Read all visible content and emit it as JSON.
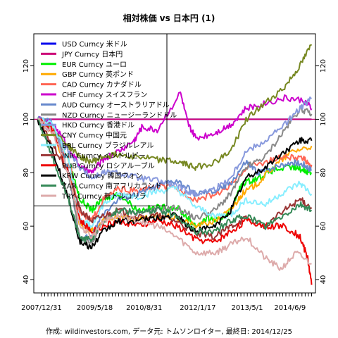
{
  "chart_data": {
    "type": "line",
    "title": "相対株価 vs 日本円 (1)",
    "footer": "作成: wildinvestors.com, データ元: トムソンロイター, 最終日: 2014/12/25",
    "xlabel": "",
    "ylabel": "",
    "x_tick_labels": [
      "2007/12/31",
      "2009/5/18",
      "2010/8/31",
      "2012/1/17",
      "2013/5/1",
      "2014/6/9"
    ],
    "x_tick_positions": [
      2008.0,
      2009.38,
      2010.66,
      2012.05,
      2013.33,
      2014.44
    ],
    "xlim": [
      2007.8,
      2015.1
    ],
    "ylim": [
      35,
      132
    ],
    "y_ticks": [
      40,
      60,
      80,
      100,
      120
    ],
    "reference_lines": [
      {
        "y": 100,
        "color": "#cc0077"
      }
    ],
    "legend_position": "top-left",
    "grid": false,
    "series": [
      {
        "name": "USD Curncy 米ドル",
        "color": "#0000ee",
        "points": [
          [
            2007.9,
            100
          ],
          [
            2015.0,
            100
          ]
        ]
      },
      {
        "name": "JPY Curncy 日本円",
        "color": "#cc0077",
        "points": [
          [
            2007.9,
            100
          ],
          [
            2015.0,
            100
          ]
        ]
      },
      {
        "name": "EUR Curncy ユーロ",
        "color": "#00ee00",
        "points": [
          [
            2007.9,
            100
          ],
          [
            2008.3,
            98
          ],
          [
            2008.7,
            85
          ],
          [
            2009.0,
            70
          ],
          [
            2009.3,
            66
          ],
          [
            2009.6,
            70
          ],
          [
            2010.0,
            72
          ],
          [
            2010.5,
            66
          ],
          [
            2011.0,
            67
          ],
          [
            2011.5,
            67
          ],
          [
            2011.8,
            63
          ],
          [
            2012.0,
            60
          ],
          [
            2012.3,
            63
          ],
          [
            2012.6,
            62
          ],
          [
            2012.9,
            66
          ],
          [
            2013.2,
            76
          ],
          [
            2013.6,
            78
          ],
          [
            2014.0,
            81
          ],
          [
            2014.5,
            82
          ],
          [
            2014.8,
            81
          ],
          [
            2015.0,
            80
          ]
        ]
      },
      {
        "name": "GBP Curncy 英ポンド",
        "color": "#ffaa00",
        "points": [
          [
            2007.9,
            100
          ],
          [
            2008.3,
            95
          ],
          [
            2008.7,
            80
          ],
          [
            2009.0,
            60
          ],
          [
            2009.3,
            58
          ],
          [
            2009.6,
            62
          ],
          [
            2010.0,
            64
          ],
          [
            2010.5,
            62
          ],
          [
            2011.0,
            64
          ],
          [
            2011.5,
            63
          ],
          [
            2012.0,
            60
          ],
          [
            2012.5,
            62
          ],
          [
            2012.9,
            66
          ],
          [
            2013.2,
            72
          ],
          [
            2013.6,
            76
          ],
          [
            2014.0,
            82
          ],
          [
            2014.5,
            88
          ],
          [
            2015.0,
            90
          ]
        ]
      },
      {
        "name": "CAD Curncy カナダドル",
        "color": "#ff6655",
        "points": [
          [
            2007.9,
            100
          ],
          [
            2008.3,
            96
          ],
          [
            2008.7,
            85
          ],
          [
            2009.0,
            65
          ],
          [
            2009.3,
            62
          ],
          [
            2009.6,
            70
          ],
          [
            2010.0,
            74
          ],
          [
            2010.5,
            73
          ],
          [
            2011.0,
            75
          ],
          [
            2011.5,
            74
          ],
          [
            2012.0,
            70
          ],
          [
            2012.5,
            72
          ],
          [
            2012.9,
            75
          ],
          [
            2013.3,
            82
          ],
          [
            2013.8,
            84
          ],
          [
            2014.3,
            86
          ],
          [
            2014.8,
            85
          ],
          [
            2015.0,
            83
          ]
        ]
      },
      {
        "name": "CHF Curncy スイスフラン",
        "color": "#cc00cc",
        "points": [
          [
            2007.9,
            100
          ],
          [
            2008.3,
            98
          ],
          [
            2008.7,
            90
          ],
          [
            2009.0,
            82
          ],
          [
            2009.3,
            80
          ],
          [
            2009.6,
            85
          ],
          [
            2010.0,
            88
          ],
          [
            2010.4,
            92
          ],
          [
            2010.6,
            97
          ],
          [
            2011.0,
            96
          ],
          [
            2011.6,
            110
          ],
          [
            2011.8,
            98
          ],
          [
            2012.0,
            93
          ],
          [
            2012.5,
            95
          ],
          [
            2012.9,
            98
          ],
          [
            2013.3,
            104
          ],
          [
            2013.8,
            106
          ],
          [
            2014.3,
            108
          ],
          [
            2014.8,
            107
          ],
          [
            2015.0,
            104
          ]
        ]
      },
      {
        "name": "AUD Curncy オーストラリアドル",
        "color": "#6688cc",
        "points": [
          [
            2007.9,
            100
          ],
          [
            2008.3,
            99
          ],
          [
            2008.7,
            80
          ],
          [
            2009.0,
            55
          ],
          [
            2009.3,
            56
          ],
          [
            2009.6,
            65
          ],
          [
            2010.0,
            70
          ],
          [
            2010.5,
            72
          ],
          [
            2011.0,
            75
          ],
          [
            2011.5,
            77
          ],
          [
            2012.0,
            72
          ],
          [
            2012.5,
            73
          ],
          [
            2012.9,
            76
          ],
          [
            2013.3,
            84
          ],
          [
            2013.6,
            80
          ],
          [
            2014.0,
            82
          ],
          [
            2014.5,
            84
          ],
          [
            2014.8,
            83
          ],
          [
            2015.0,
            81
          ]
        ]
      },
      {
        "name": "NZD Curncy ニュージーランドドル",
        "color": "#888888",
        "points": [
          [
            2007.9,
            100
          ],
          [
            2008.3,
            97
          ],
          [
            2008.7,
            80
          ],
          [
            2009.0,
            55
          ],
          [
            2009.3,
            54
          ],
          [
            2009.6,
            62
          ],
          [
            2010.0,
            66
          ],
          [
            2010.5,
            65
          ],
          [
            2011.0,
            66
          ],
          [
            2011.5,
            67
          ],
          [
            2012.0,
            63
          ],
          [
            2012.5,
            66
          ],
          [
            2012.9,
            72
          ],
          [
            2013.3,
            82
          ],
          [
            2013.8,
            86
          ],
          [
            2014.3,
            96
          ],
          [
            2014.7,
            104
          ],
          [
            2015.0,
            102
          ]
        ]
      },
      {
        "name": "HKD Curncy 香港ドル",
        "color": "#8899dd",
        "points": [
          [
            2007.9,
            100
          ],
          [
            2008.3,
            95
          ],
          [
            2008.7,
            88
          ],
          [
            2009.0,
            82
          ],
          [
            2009.3,
            78
          ],
          [
            2009.6,
            80
          ],
          [
            2010.0,
            80
          ],
          [
            2010.5,
            78
          ],
          [
            2011.0,
            77
          ],
          [
            2011.5,
            75
          ],
          [
            2011.8,
            73
          ],
          [
            2012.0,
            72
          ],
          [
            2012.5,
            74
          ],
          [
            2012.9,
            78
          ],
          [
            2013.3,
            88
          ],
          [
            2013.8,
            92
          ],
          [
            2014.3,
            98
          ],
          [
            2014.7,
            104
          ],
          [
            2015.0,
            108
          ]
        ]
      },
      {
        "name": "CNY Curncy 中国元",
        "color": "#778822",
        "points": [
          [
            2007.9,
            100
          ],
          [
            2008.3,
            96
          ],
          [
            2008.7,
            90
          ],
          [
            2009.0,
            86
          ],
          [
            2009.3,
            84
          ],
          [
            2009.6,
            86
          ],
          [
            2010.0,
            87
          ],
          [
            2010.5,
            86
          ],
          [
            2011.0,
            85
          ],
          [
            2011.5,
            84
          ],
          [
            2011.8,
            83
          ],
          [
            2012.0,
            82
          ],
          [
            2012.5,
            84
          ],
          [
            2012.9,
            88
          ],
          [
            2013.3,
            100
          ],
          [
            2013.8,
            106
          ],
          [
            2014.3,
            112
          ],
          [
            2014.7,
            120
          ],
          [
            2015.0,
            128
          ]
        ]
      },
      {
        "name": "BRL Curncy ブラジルレアル",
        "color": "#88eeff",
        "points": [
          [
            2007.9,
            100
          ],
          [
            2008.3,
            98
          ],
          [
            2008.7,
            85
          ],
          [
            2009.0,
            62
          ],
          [
            2009.3,
            60
          ],
          [
            2009.6,
            68
          ],
          [
            2010.0,
            72
          ],
          [
            2010.5,
            71
          ],
          [
            2011.0,
            73
          ],
          [
            2011.5,
            74
          ],
          [
            2012.0,
            67
          ],
          [
            2012.5,
            64
          ],
          [
            2012.9,
            64
          ],
          [
            2013.3,
            70
          ],
          [
            2013.8,
            68
          ],
          [
            2014.3,
            73
          ],
          [
            2014.7,
            76
          ],
          [
            2015.0,
            72
          ]
        ]
      },
      {
        "name": "INR Curncy インドルピー",
        "color": "#993333",
        "points": [
          [
            2007.9,
            100
          ],
          [
            2008.3,
            90
          ],
          [
            2008.7,
            80
          ],
          [
            2009.0,
            66
          ],
          [
            2009.3,
            62
          ],
          [
            2009.6,
            64
          ],
          [
            2010.0,
            66
          ],
          [
            2010.5,
            63
          ],
          [
            2011.0,
            64
          ],
          [
            2011.5,
            62
          ],
          [
            2012.0,
            57
          ],
          [
            2012.5,
            56
          ],
          [
            2012.9,
            60
          ],
          [
            2013.3,
            63
          ],
          [
            2013.8,
            60
          ],
          [
            2014.3,
            66
          ],
          [
            2014.7,
            70
          ],
          [
            2015.0,
            67
          ]
        ]
      },
      {
        "name": "RUB Curncy ロシアルーブル",
        "color": "#ee0000",
        "points": [
          [
            2007.9,
            100
          ],
          [
            2008.3,
            96
          ],
          [
            2008.7,
            80
          ],
          [
            2009.0,
            62
          ],
          [
            2009.3,
            58
          ],
          [
            2009.6,
            60
          ],
          [
            2010.0,
            62
          ],
          [
            2010.5,
            60
          ],
          [
            2011.0,
            62
          ],
          [
            2011.5,
            60
          ],
          [
            2012.0,
            55
          ],
          [
            2012.5,
            54
          ],
          [
            2012.9,
            58
          ],
          [
            2013.3,
            62
          ],
          [
            2013.8,
            60
          ],
          [
            2014.3,
            60
          ],
          [
            2014.7,
            56
          ],
          [
            2014.9,
            48
          ],
          [
            2015.0,
            38
          ]
        ]
      },
      {
        "name": "KRW Curncy 韓国ウォン",
        "color": "#000000",
        "points": [
          [
            2007.9,
            100
          ],
          [
            2008.3,
            88
          ],
          [
            2008.7,
            70
          ],
          [
            2009.0,
            54
          ],
          [
            2009.3,
            52
          ],
          [
            2009.6,
            58
          ],
          [
            2010.0,
            62
          ],
          [
            2010.5,
            62
          ],
          [
            2011.0,
            63
          ],
          [
            2011.5,
            64
          ],
          [
            2011.8,
            60
          ],
          [
            2012.0,
            58
          ],
          [
            2012.5,
            60
          ],
          [
            2012.9,
            66
          ],
          [
            2013.3,
            78
          ],
          [
            2013.8,
            82
          ],
          [
            2014.3,
            88
          ],
          [
            2014.7,
            92
          ],
          [
            2015.0,
            92
          ]
        ]
      },
      {
        "name": "ZAR Curncy 南アフリカランド",
        "color": "#338855",
        "points": [
          [
            2007.9,
            100
          ],
          [
            2008.3,
            85
          ],
          [
            2008.7,
            70
          ],
          [
            2009.0,
            55
          ],
          [
            2009.3,
            55
          ],
          [
            2009.6,
            62
          ],
          [
            2010.0,
            66
          ],
          [
            2010.5,
            65
          ],
          [
            2011.0,
            66
          ],
          [
            2011.5,
            64
          ],
          [
            2012.0,
            58
          ],
          [
            2012.5,
            58
          ],
          [
            2012.9,
            62
          ],
          [
            2013.3,
            64
          ],
          [
            2013.8,
            60
          ],
          [
            2014.3,
            64
          ],
          [
            2014.7,
            68
          ],
          [
            2015.0,
            66
          ]
        ]
      },
      {
        "name": "TRY Curncy 新トルコリラ",
        "color": "#ddaaaa",
        "points": [
          [
            2007.9,
            100
          ],
          [
            2008.3,
            95
          ],
          [
            2008.7,
            80
          ],
          [
            2009.0,
            60
          ],
          [
            2009.3,
            56
          ],
          [
            2009.6,
            62
          ],
          [
            2010.0,
            64
          ],
          [
            2010.5,
            62
          ],
          [
            2011.0,
            60
          ],
          [
            2011.5,
            56
          ],
          [
            2012.0,
            50
          ],
          [
            2012.5,
            50
          ],
          [
            2012.9,
            53
          ],
          [
            2013.3,
            56
          ],
          [
            2013.8,
            48
          ],
          [
            2014.2,
            44
          ],
          [
            2014.6,
            50
          ],
          [
            2015.0,
            46
          ]
        ]
      }
    ]
  }
}
